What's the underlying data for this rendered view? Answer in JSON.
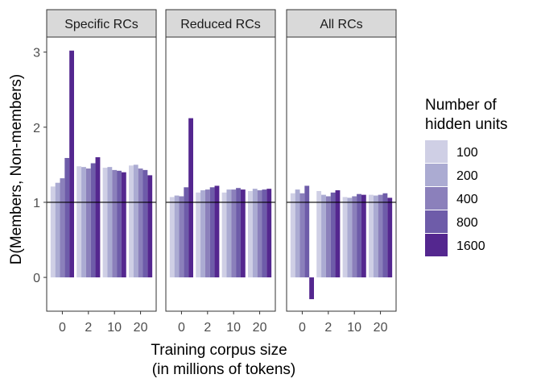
{
  "chart_data": {
    "type": "bar",
    "ylabel": "D(Members, Non-members)",
    "xlabel_line1": "Training corpus size",
    "xlabel_line2": "(in millions of tokens)",
    "categories": [
      "0",
      "2",
      "10",
      "20"
    ],
    "yticks": [
      0,
      1,
      2,
      3
    ],
    "ylim": [
      -0.45,
      3.2
    ],
    "reference_line": 1,
    "legend": {
      "title_line1": "Number of",
      "title_line2": "hidden units",
      "placement": "right",
      "entries": [
        "100",
        "200",
        "400",
        "800",
        "1600"
      ]
    },
    "colors": [
      "#cfcfe5",
      "#ababd2",
      "#8b80bb",
      "#6e5ca9",
      "#54278f"
    ],
    "panels": [
      {
        "title": "Specific RCs",
        "values": [
          [
            1.21,
            1.26,
            1.32,
            1.59,
            3.02
          ],
          [
            1.48,
            1.47,
            1.45,
            1.52,
            1.6
          ],
          [
            1.46,
            1.47,
            1.43,
            1.42,
            1.4
          ],
          [
            1.49,
            1.5,
            1.45,
            1.43,
            1.36
          ]
        ]
      },
      {
        "title": "Reduced RCs",
        "values": [
          [
            1.07,
            1.09,
            1.08,
            1.2,
            2.12
          ],
          [
            1.13,
            1.16,
            1.17,
            1.2,
            1.22
          ],
          [
            1.13,
            1.17,
            1.17,
            1.19,
            1.17
          ],
          [
            1.15,
            1.18,
            1.16,
            1.17,
            1.18
          ]
        ]
      },
      {
        "title": "All RCs",
        "values": [
          [
            1.12,
            1.17,
            1.12,
            1.22,
            -0.29
          ],
          [
            1.15,
            1.1,
            1.08,
            1.13,
            1.16
          ],
          [
            1.07,
            1.06,
            1.08,
            1.11,
            1.1
          ],
          [
            1.1,
            1.09,
            1.1,
            1.12,
            1.06
          ]
        ]
      }
    ]
  }
}
